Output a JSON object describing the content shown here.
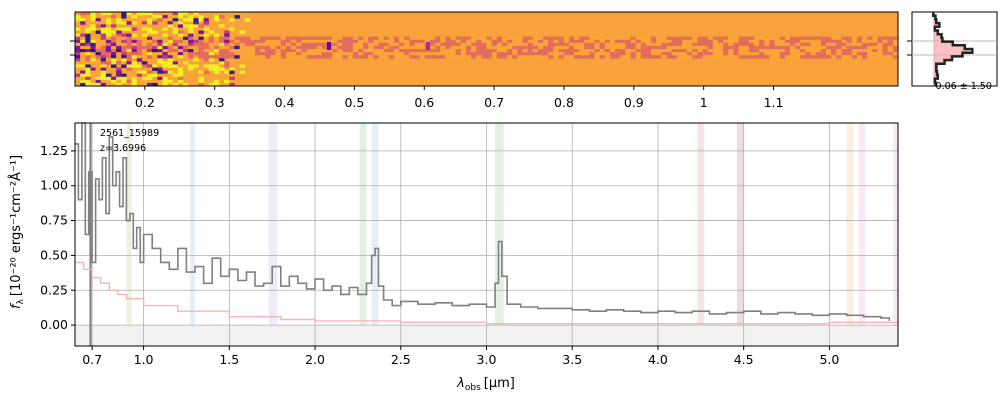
{
  "chart_data": [
    {
      "type": "heatmap",
      "name": "2D spectrum",
      "top_axis_ticks": [
        0.2,
        0.3,
        0.4,
        0.5,
        0.6,
        0.7,
        0.8,
        0.9,
        1.0,
        1.1
      ],
      "colormap": [
        "#0d0887",
        "#6a00a8",
        "#b12a90",
        "#e16462",
        "#fca636",
        "#f0f921"
      ],
      "background": "#f7a23a"
    },
    {
      "type": "line",
      "name": "spatial profile",
      "annotation": "-0.06 ± 1.50",
      "fill_color": "#f4a6ad",
      "line_color": "#222222"
    },
    {
      "type": "line",
      "title": "",
      "annotations": [
        "2561_15989",
        "z=3.6996"
      ],
      "xlabel_main": "λ",
      "xlabel_sub": "obs",
      "xlabel_unit": "[μm]",
      "ylabel_main": "f",
      "ylabel_sub": "λ",
      "ylabel_unit": "[10⁻²⁰ ergs⁻¹cm⁻²Å⁻¹]",
      "xlim": [
        0.6,
        5.4
      ],
      "ylim": [
        -0.15,
        1.45
      ],
      "x_ticks": [
        0.7,
        1.0,
        1.5,
        2.0,
        2.5,
        3.0,
        3.5,
        4.0,
        4.5,
        5.0
      ],
      "x_tick_labels": [
        "0.7",
        "1.0",
        "1.5",
        "2.0",
        "2.5",
        "3.0",
        "3.5",
        "4.0",
        "4.5",
        "5.0"
      ],
      "y_ticks": [
        0.0,
        0.25,
        0.5,
        0.75,
        1.0,
        1.25
      ],
      "y_tick_labels": [
        "0.00",
        "0.25",
        "0.50",
        "0.75",
        "1.00",
        "1.25"
      ],
      "grid": true,
      "series": [
        {
          "color": "#808080",
          "x": [
            0.6,
            0.62,
            0.64,
            0.66,
            0.68,
            0.7,
            0.72,
            0.74,
            0.76,
            0.78,
            0.8,
            0.82,
            0.84,
            0.86,
            0.88,
            0.9,
            0.92,
            0.94,
            0.96,
            0.98,
            1.0,
            1.05,
            1.1,
            1.15,
            1.2,
            1.25,
            1.3,
            1.35,
            1.4,
            1.45,
            1.5,
            1.55,
            1.6,
            1.65,
            1.7,
            1.75,
            1.8,
            1.85,
            1.9,
            1.95,
            2.0,
            2.05,
            2.1,
            2.15,
            2.2,
            2.25,
            2.3,
            2.33,
            2.35,
            2.37,
            2.4,
            2.45,
            2.5,
            2.6,
            2.7,
            2.8,
            2.9,
            3.0,
            3.05,
            3.07,
            3.09,
            3.12,
            3.2,
            3.3,
            3.4,
            3.5,
            3.6,
            3.7,
            3.8,
            3.9,
            4.0,
            4.1,
            4.2,
            4.3,
            4.4,
            4.5,
            4.6,
            4.7,
            4.8,
            4.9,
            5.0,
            5.1,
            5.2,
            5.3,
            5.35
          ],
          "y": [
            1.3,
            0.9,
            1.45,
            0.65,
            1.1,
            0.45,
            1.05,
            0.9,
            1.2,
            0.8,
            1.35,
            1.0,
            1.1,
            0.85,
            1.2,
            0.75,
            0.8,
            0.55,
            0.7,
            0.45,
            0.65,
            0.55,
            0.45,
            0.4,
            0.55,
            0.38,
            0.42,
            0.3,
            0.48,
            0.35,
            0.4,
            0.32,
            0.38,
            0.28,
            0.3,
            0.42,
            0.28,
            0.35,
            0.3,
            0.26,
            0.33,
            0.25,
            0.28,
            0.22,
            0.27,
            0.22,
            0.3,
            0.5,
            0.55,
            0.28,
            0.18,
            0.14,
            0.17,
            0.15,
            0.16,
            0.14,
            0.15,
            0.13,
            0.3,
            0.6,
            0.35,
            0.15,
            0.13,
            0.12,
            0.12,
            0.11,
            0.1,
            0.11,
            0.1,
            0.09,
            0.1,
            0.09,
            0.1,
            0.08,
            0.09,
            0.1,
            0.08,
            0.09,
            0.08,
            0.07,
            0.08,
            0.07,
            0.06,
            0.05,
            0.03
          ]
        },
        {
          "color": "#f4b6b6",
          "x": [
            0.6,
            0.65,
            0.7,
            0.75,
            0.8,
            0.85,
            0.9,
            1.0,
            1.2,
            1.5,
            1.8,
            2.0,
            2.5,
            3.0,
            3.5,
            4.0,
            4.5,
            5.0,
            5.4
          ],
          "y": [
            0.45,
            0.4,
            0.34,
            0.3,
            0.25,
            0.22,
            0.19,
            0.14,
            0.1,
            0.06,
            0.04,
            0.03,
            0.02,
            0.01,
            0.01,
            0.01,
            0.01,
            0.02,
            0.03
          ]
        }
      ],
      "bands": [
        {
          "x": [
            0.9,
            0.93
          ],
          "color": "#c6d08a"
        },
        {
          "x": [
            1.27,
            1.3
          ],
          "color": "#a9c9ea"
        },
        {
          "x": [
            1.73,
            1.78
          ],
          "color": "#c9b8e3"
        },
        {
          "x": [
            2.26,
            2.3
          ],
          "color": "#9fd19f"
        },
        {
          "x": [
            2.33,
            2.37
          ],
          "color": "#a9c9ea"
        },
        {
          "x": [
            3.05,
            3.1
          ],
          "color": "#9fd19f"
        },
        {
          "x": [
            4.23,
            4.27
          ],
          "color": "#e3a1a1"
        },
        {
          "x": [
            4.46,
            4.5
          ],
          "color": "#d18a8a"
        },
        {
          "x": [
            5.1,
            5.14
          ],
          "color": "#f6c98d"
        },
        {
          "x": [
            5.17,
            5.21
          ],
          "color": "#f0b3e6"
        },
        {
          "x": [
            5.37,
            5.4
          ],
          "color": "#f0b3e6"
        }
      ]
    }
  ]
}
